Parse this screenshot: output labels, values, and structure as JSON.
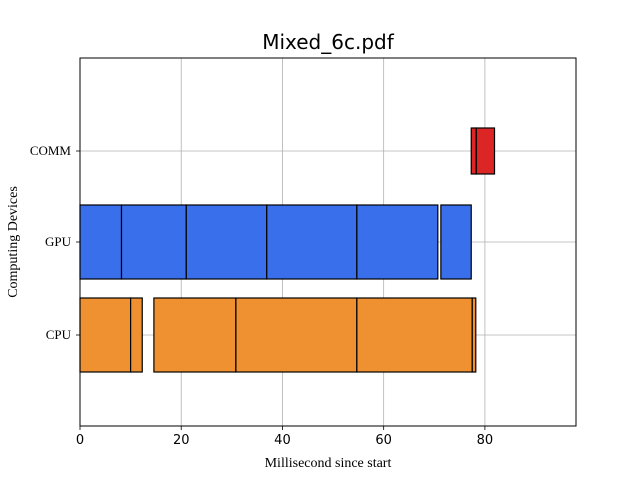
{
  "chart_data": {
    "type": "gantt",
    "title": "Mixed_6c.pdf",
    "xlabel": "Millisecond since start",
    "ylabel": "Computing Devices",
    "xlim": [
      0,
      98
    ],
    "xticks": [
      "0",
      "20",
      "40",
      "60",
      "80"
    ],
    "xtick_values": [
      0,
      20,
      40,
      60,
      80
    ],
    "grid": true,
    "categories": [
      "CPU",
      "GPU",
      "COMM"
    ],
    "colors": {
      "CPU": "#ef9130",
      "GPU": "#3a6fec",
      "COMM": "#dc2626"
    },
    "series": [
      {
        "device": "CPU",
        "tasks": [
          {
            "start": 0.0,
            "end": 10.0
          },
          {
            "start": 10.0,
            "end": 12.3
          },
          {
            "start": 14.6,
            "end": 30.8
          },
          {
            "start": 30.8,
            "end": 54.7
          },
          {
            "start": 54.7,
            "end": 77.5
          },
          {
            "start": 77.5,
            "end": 78.2
          }
        ]
      },
      {
        "device": "GPU",
        "tasks": [
          {
            "start": 0.0,
            "end": 8.2
          },
          {
            "start": 8.2,
            "end": 21.0
          },
          {
            "start": 21.0,
            "end": 36.9
          },
          {
            "start": 36.9,
            "end": 54.7
          },
          {
            "start": 54.7,
            "end": 70.7
          },
          {
            "start": 71.3,
            "end": 77.3
          }
        ]
      },
      {
        "device": "COMM",
        "tasks": [
          {
            "start": 77.3,
            "end": 78.3
          },
          {
            "start": 78.3,
            "end": 81.9
          }
        ]
      }
    ]
  }
}
